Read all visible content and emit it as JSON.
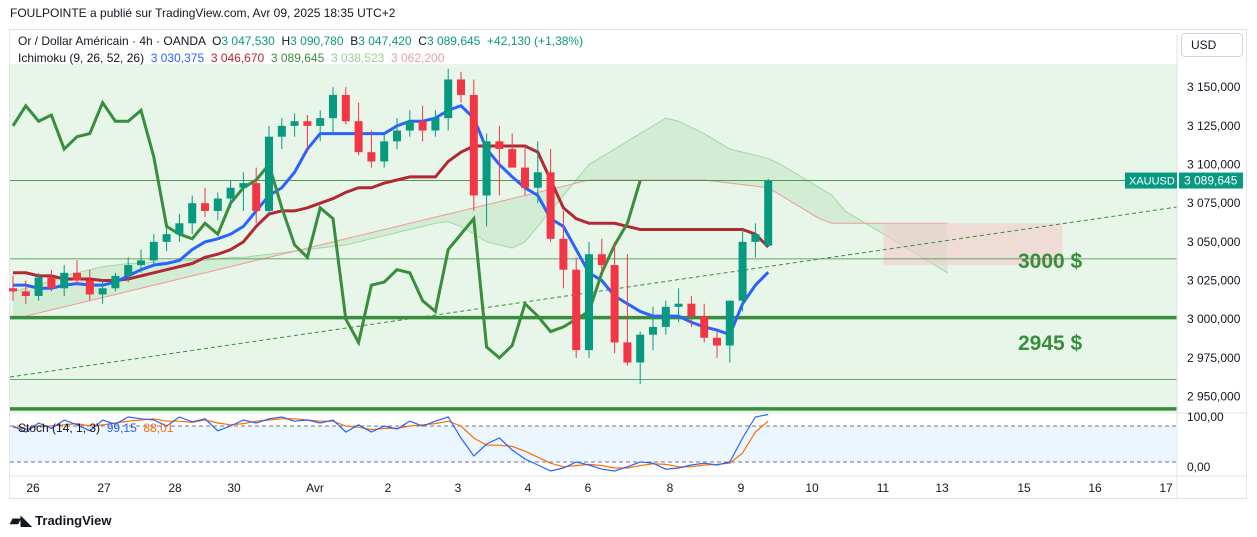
{
  "header": {
    "publisher": "FOULPOINTE a publié sur TradingView.com, Avr 09, 2025 18:35 UTC+2"
  },
  "legend": {
    "symbol": "Or / Dollar Américain · 4h · OANDA",
    "open_label": "O",
    "open": "3 047,530",
    "high_label": "H",
    "high": "3 090,780",
    "low_label": "B",
    "low": "3 047,420",
    "close_label": "C",
    "close": "3 089,645",
    "change": "+42,130 (+1,38%)",
    "ichimoku_name": "Ichimoku (9, 26, 52, 26)",
    "conversion": "3 030,375",
    "base": "3 046,670",
    "lagging": "3 089,645",
    "lead1": "3 038,523",
    "lead2": "3 062,200"
  },
  "currency_button": "USD",
  "price_axis": {
    "ticks": [
      "3 150,000",
      "3 125,000",
      "3 100,000",
      "3 075,000",
      "3 050,000",
      "3 025,000",
      "3 000,000",
      "2 975,000",
      "2 950,000"
    ],
    "symbol_tag": "XAUUSD",
    "last_price_tag": "3 089,645"
  },
  "annotations": {
    "level_3000": "3000 $",
    "level_2945": "2945 $"
  },
  "stoch": {
    "name": "Stoch (14, 1, 3)",
    "k": "99,15",
    "d": "88,01",
    "ticks": [
      "100,00",
      "0,00"
    ]
  },
  "time_axis": [
    "26",
    "27",
    "28",
    "30",
    "Avr",
    "2",
    "3",
    "4",
    "6",
    "8",
    "9",
    "10",
    "11",
    "13",
    "15",
    "16",
    "17"
  ],
  "branding": "TradingView",
  "colors": {
    "up": "#089981",
    "down": "#f23645",
    "conversion_line": "#2962ff",
    "base_line": "#b22833",
    "lagging_span": "#388e3c",
    "cloud_green": "#c8e6c9",
    "cloud_red": "#f4cccc",
    "level_line": "#388e3c",
    "stoch_k": "#2962ff",
    "stoch_d": "#ff6d00"
  },
  "chart_data": {
    "type": "candlestick",
    "symbol": "XAUUSD",
    "timeframe": "4h",
    "ylim": [
      2940,
      3165
    ],
    "candles": [
      [
        3020,
        3028,
        3012,
        3018
      ],
      [
        3018,
        3025,
        3010,
        3015
      ],
      [
        3015,
        3030,
        3012,
        3027
      ],
      [
        3027,
        3032,
        3018,
        3020
      ],
      [
        3020,
        3035,
        3015,
        3030
      ],
      [
        3030,
        3038,
        3022,
        3025
      ],
      [
        3025,
        3032,
        3012,
        3016
      ],
      [
        3016,
        3025,
        3010,
        3020
      ],
      [
        3020,
        3030,
        3018,
        3028
      ],
      [
        3028,
        3040,
        3024,
        3035
      ],
      [
        3035,
        3045,
        3030,
        3038
      ],
      [
        3038,
        3055,
        3035,
        3050
      ],
      [
        3050,
        3060,
        3044,
        3055
      ],
      [
        3055,
        3068,
        3050,
        3062
      ],
      [
        3062,
        3080,
        3055,
        3075
      ],
      [
        3075,
        3085,
        3066,
        3070
      ],
      [
        3070,
        3082,
        3064,
        3078
      ],
      [
        3078,
        3090,
        3072,
        3085
      ],
      [
        3085,
        3095,
        3070,
        3088
      ],
      [
        3088,
        3098,
        3062,
        3070
      ],
      [
        3070,
        3125,
        3068,
        3118
      ],
      [
        3118,
        3130,
        3110,
        3125
      ],
      [
        3125,
        3133,
        3118,
        3128
      ],
      [
        3128,
        3132,
        3108,
        3125
      ],
      [
        3125,
        3135,
        3115,
        3130
      ],
      [
        3130,
        3150,
        3120,
        3145
      ],
      [
        3145,
        3150,
        3126,
        3128
      ],
      [
        3128,
        3140,
        3106,
        3108
      ],
      [
        3108,
        3122,
        3098,
        3102
      ],
      [
        3102,
        3120,
        3098,
        3115
      ],
      [
        3115,
        3130,
        3110,
        3122
      ],
      [
        3122,
        3135,
        3118,
        3128
      ],
      [
        3128,
        3138,
        3115,
        3122
      ],
      [
        3122,
        3135,
        3118,
        3130
      ],
      [
        3130,
        3162,
        3122,
        3155
      ],
      [
        3155,
        3160,
        3140,
        3145
      ],
      [
        3145,
        3155,
        3070,
        3080
      ],
      [
        3080,
        3120,
        3060,
        3115
      ],
      [
        3115,
        3125,
        3080,
        3110
      ],
      [
        3110,
        3120,
        3100,
        3098
      ],
      [
        3098,
        3112,
        3080,
        3085
      ],
      [
        3085,
        3115,
        3075,
        3095
      ],
      [
        3095,
        3110,
        3050,
        3052
      ],
      [
        3052,
        3070,
        3020,
        3032
      ],
      [
        3032,
        3040,
        2975,
        2980
      ],
      [
        2980,
        3050,
        2975,
        3042
      ],
      [
        3042,
        3052,
        3030,
        3035
      ],
      [
        3035,
        3050,
        2978,
        2985
      ],
      [
        2985,
        3042,
        2970,
        2972
      ],
      [
        2972,
        2992,
        2958,
        2990
      ],
      [
        2990,
        3008,
        2980,
        2995
      ],
      [
        2995,
        3012,
        2990,
        3008
      ],
      [
        3008,
        3020,
        2998,
        3010
      ],
      [
        3010,
        3015,
        2995,
        3002
      ],
      [
        3002,
        3010,
        2985,
        2988
      ],
      [
        2988,
        2992,
        2975,
        2983
      ],
      [
        2983,
        3012,
        2972,
        3012
      ],
      [
        3012,
        3058,
        3005,
        3050
      ],
      [
        3050,
        3062,
        3040,
        3055
      ],
      [
        3047.53,
        3090.78,
        3047.42,
        3089.645
      ]
    ],
    "levels": [
      3039,
      3001,
      2961,
      2942
    ],
    "stoch_k": [
      80,
      70,
      85,
      76,
      90,
      82,
      72,
      90,
      83,
      95,
      92,
      90,
      80,
      95,
      87,
      92,
      72,
      80,
      90,
      85,
      92,
      95,
      88,
      90,
      85,
      90,
      70,
      82,
      70,
      80,
      75,
      88,
      80,
      88,
      95,
      60,
      30,
      50,
      60,
      40,
      25,
      15,
      5,
      10,
      20,
      15,
      8,
      5,
      12,
      20,
      18,
      8,
      10,
      15,
      18,
      15,
      20,
      60,
      95,
      99.15
    ],
    "stoch_d": [
      78,
      75,
      80,
      80,
      82,
      84,
      80,
      82,
      85,
      88,
      90,
      92,
      88,
      88,
      86,
      90,
      85,
      82,
      84,
      88,
      90,
      92,
      92,
      90,
      88,
      88,
      80,
      78,
      74,
      76,
      76,
      80,
      82,
      84,
      88,
      80,
      60,
      48,
      48,
      46,
      38,
      28,
      18,
      12,
      14,
      16,
      14,
      10,
      10,
      14,
      17,
      16,
      12,
      12,
      15,
      16,
      18,
      35,
      70,
      88.01
    ]
  }
}
